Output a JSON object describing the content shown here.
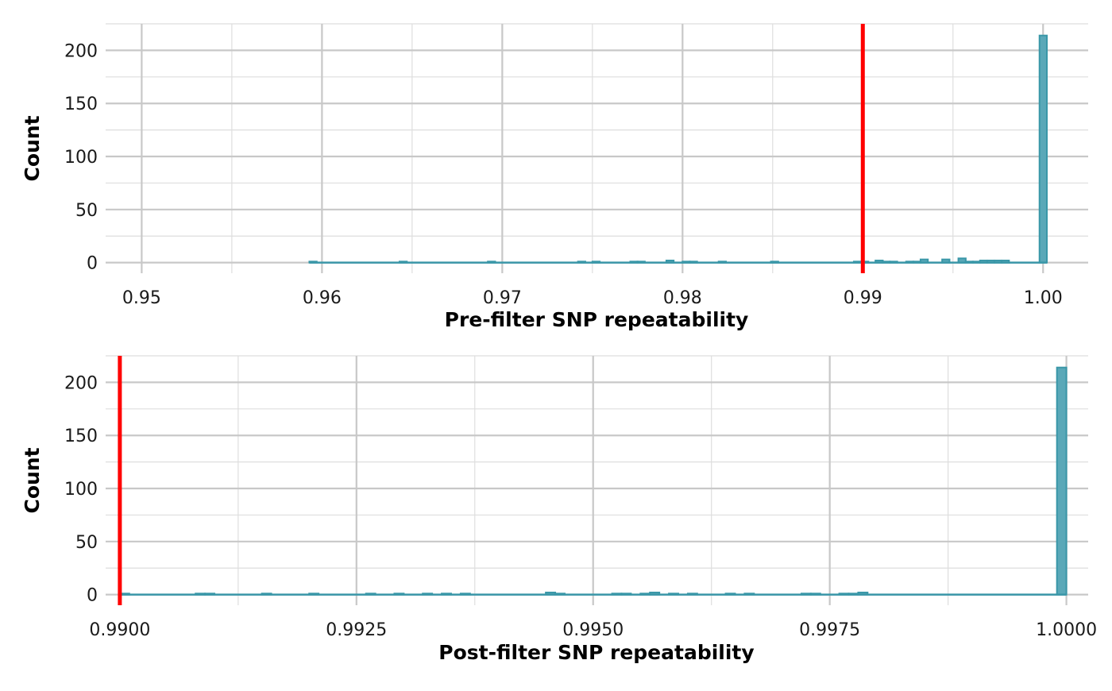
{
  "colors": {
    "background": "#ffffff",
    "grid_major": "#c8c8c8",
    "grid_minor": "#dedede",
    "bar_fill": "#5aa8b8",
    "bar_stroke": "#3a97a8",
    "threshold_line": "#ff0000"
  },
  "chart_data": [
    {
      "type": "histogram",
      "xlabel": "Pre-filter SNP repeatability",
      "ylabel": "Count",
      "xlim": [
        0.948,
        1.0025
      ],
      "ylim": [
        -10,
        225
      ],
      "xticks": [
        0.95,
        0.96,
        0.97,
        0.98,
        0.99,
        1.0
      ],
      "xtick_labels": [
        "0.95",
        "0.96",
        "0.97",
        "0.98",
        "0.99",
        "1.00"
      ],
      "yticks": [
        0,
        50,
        100,
        150,
        200
      ],
      "ytick_labels": [
        "0",
        "50",
        "100",
        "150",
        "200"
      ],
      "grid": true,
      "threshold": 0.99,
      "bin_start": 0.9593,
      "bin_width": 0.00041,
      "bins": [
        {
          "x": 0.9593,
          "count": 1
        },
        {
          "x": 0.9643,
          "count": 1
        },
        {
          "x": 0.9692,
          "count": 1
        },
        {
          "x": 0.9742,
          "count": 1
        },
        {
          "x": 0.975,
          "count": 1
        },
        {
          "x": 0.9771,
          "count": 1
        },
        {
          "x": 0.9775,
          "count": 1
        },
        {
          "x": 0.9791,
          "count": 2
        },
        {
          "x": 0.98,
          "count": 1
        },
        {
          "x": 0.9804,
          "count": 1
        },
        {
          "x": 0.982,
          "count": 1
        },
        {
          "x": 0.9849,
          "count": 1
        },
        {
          "x": 0.9895,
          "count": 1
        },
        {
          "x": 0.9899,
          "count": 1
        },
        {
          "x": 0.9907,
          "count": 2
        },
        {
          "x": 0.9911,
          "count": 1
        },
        {
          "x": 0.9915,
          "count": 1
        },
        {
          "x": 0.9924,
          "count": 1
        },
        {
          "x": 0.9928,
          "count": 1
        },
        {
          "x": 0.9932,
          "count": 3
        },
        {
          "x": 0.9944,
          "count": 3
        },
        {
          "x": 0.9953,
          "count": 4
        },
        {
          "x": 0.9957,
          "count": 1
        },
        {
          "x": 0.9961,
          "count": 1
        },
        {
          "x": 0.9965,
          "count": 2
        },
        {
          "x": 0.9969,
          "count": 2
        },
        {
          "x": 0.9973,
          "count": 2
        },
        {
          "x": 0.9977,
          "count": 2
        },
        {
          "x": 0.9998,
          "count": 214
        }
      ]
    },
    {
      "type": "histogram",
      "xlabel": "Post-filter SNP repeatability",
      "ylabel": "Count",
      "xlim": [
        0.98985,
        1.00023
      ],
      "ylim": [
        -10,
        225
      ],
      "xticks": [
        0.99,
        0.9925,
        0.995,
        0.9975,
        1.0
      ],
      "xtick_labels": [
        "0.9900",
        "0.9925",
        "0.9950",
        "0.9975",
        "1.0000"
      ],
      "yticks": [
        0,
        50,
        100,
        150,
        200
      ],
      "ytick_labels": [
        "0",
        "50",
        "100",
        "150",
        "200"
      ],
      "grid": true,
      "threshold": 0.99,
      "bin_start": 0.99,
      "bin_width": 0.0001,
      "bins": [
        {
          "x": 0.99,
          "count": 1
        },
        {
          "x": 0.9908,
          "count": 1
        },
        {
          "x": 0.9909,
          "count": 1
        },
        {
          "x": 0.9915,
          "count": 1
        },
        {
          "x": 0.992,
          "count": 1
        },
        {
          "x": 0.9926,
          "count": 1
        },
        {
          "x": 0.9929,
          "count": 1
        },
        {
          "x": 0.9932,
          "count": 1
        },
        {
          "x": 0.9934,
          "count": 1
        },
        {
          "x": 0.9936,
          "count": 1
        },
        {
          "x": 0.9945,
          "count": 2
        },
        {
          "x": 0.9946,
          "count": 1
        },
        {
          "x": 0.9952,
          "count": 1
        },
        {
          "x": 0.9953,
          "count": 1
        },
        {
          "x": 0.9955,
          "count": 1
        },
        {
          "x": 0.9956,
          "count": 2
        },
        {
          "x": 0.9958,
          "count": 1
        },
        {
          "x": 0.996,
          "count": 1
        },
        {
          "x": 0.9964,
          "count": 1
        },
        {
          "x": 0.9966,
          "count": 1
        },
        {
          "x": 0.9972,
          "count": 1
        },
        {
          "x": 0.9973,
          "count": 1
        },
        {
          "x": 0.9976,
          "count": 1
        },
        {
          "x": 0.9977,
          "count": 1
        },
        {
          "x": 0.9978,
          "count": 2
        },
        {
          "x": 0.9999,
          "count": 214
        }
      ]
    }
  ]
}
